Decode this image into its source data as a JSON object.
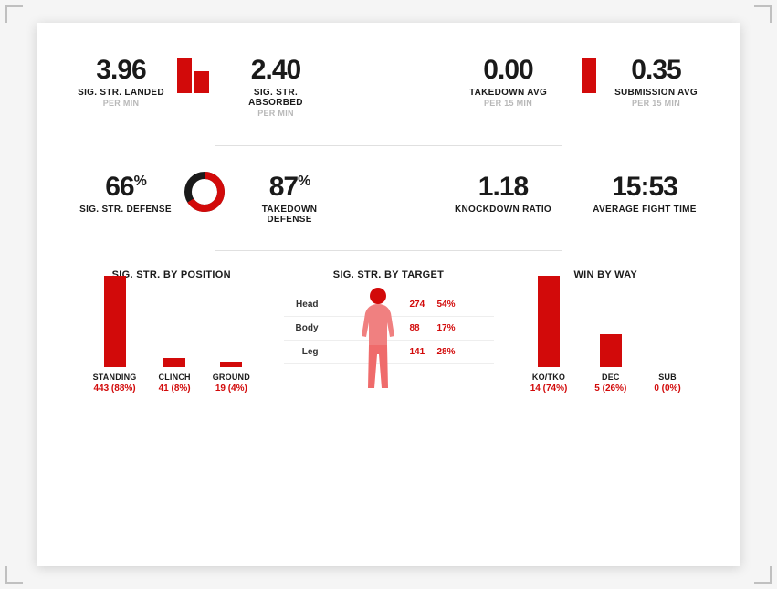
{
  "colors": {
    "accent": "#d20a0a",
    "text": "#1a1a1a",
    "muted": "#b8b8b8",
    "divider": "#e0e0e0",
    "bg": "#ffffff"
  },
  "row1": {
    "strLanded": {
      "value": "3.96",
      "label": "SIG. STR. LANDED",
      "sub": "PER MIN"
    },
    "strAbsorbed": {
      "value": "2.40",
      "label": "SIG. STR. ABSORBED",
      "sub": "PER MIN"
    },
    "bars1": {
      "heights": [
        38,
        24
      ],
      "max": 38,
      "color": "#d20a0a"
    },
    "tdAvg": {
      "value": "0.00",
      "label": "TAKEDOWN AVG",
      "sub": "PER 15 MIN"
    },
    "subAvg": {
      "value": "0.35",
      "label": "SUBMISSION AVG",
      "sub": "PER 15 MIN"
    },
    "bars2": {
      "heights": [
        0,
        38
      ],
      "max": 38,
      "color": "#d20a0a"
    }
  },
  "row2": {
    "strDef": {
      "value": "66",
      "pct": "%",
      "label": "SIG. STR. DEFENSE"
    },
    "tdDef": {
      "value": "87",
      "pct": "%",
      "label": "TAKEDOWN DEFENSE"
    },
    "donut": {
      "pct": 66,
      "r": 18,
      "stroke": 8,
      "bg": "#1a1a1a",
      "fg": "#d20a0a"
    },
    "kdRatio": {
      "value": "1.18",
      "label": "KNOCKDOWN RATIO"
    },
    "fightTime": {
      "value": "15:53",
      "label": "AVERAGE FIGHT TIME"
    }
  },
  "position": {
    "title": "SIG. STR. BY POSITION",
    "maxHeight": 100,
    "items": [
      {
        "label": "STANDING",
        "count": 443,
        "pct": "88%",
        "bar": 100
      },
      {
        "label": "CLINCH",
        "count": 41,
        "pct": "8%",
        "bar": 10
      },
      {
        "label": "GROUND",
        "count": 19,
        "pct": "4%",
        "bar": 6
      }
    ],
    "color": "#d20a0a"
  },
  "target": {
    "title": "SIG. STR. BY TARGET",
    "rows": [
      {
        "label": "Head",
        "count": 274,
        "pct": "54%"
      },
      {
        "label": "Body",
        "count": 88,
        "pct": "17%"
      },
      {
        "label": "Leg",
        "count": 141,
        "pct": "28%"
      }
    ],
    "figure": {
      "head": "#d20a0a",
      "body": "#f08080",
      "legs": "#ef6b6b"
    }
  },
  "winby": {
    "title": "WIN BY WAY",
    "maxHeight": 100,
    "items": [
      {
        "label": "KO/TKO",
        "count": 14,
        "pct": "74%",
        "bar": 100
      },
      {
        "label": "DEC",
        "count": 5,
        "pct": "26%",
        "bar": 36
      },
      {
        "label": "SUB",
        "count": 0,
        "pct": "0%",
        "bar": 0
      }
    ],
    "color": "#d20a0a"
  }
}
